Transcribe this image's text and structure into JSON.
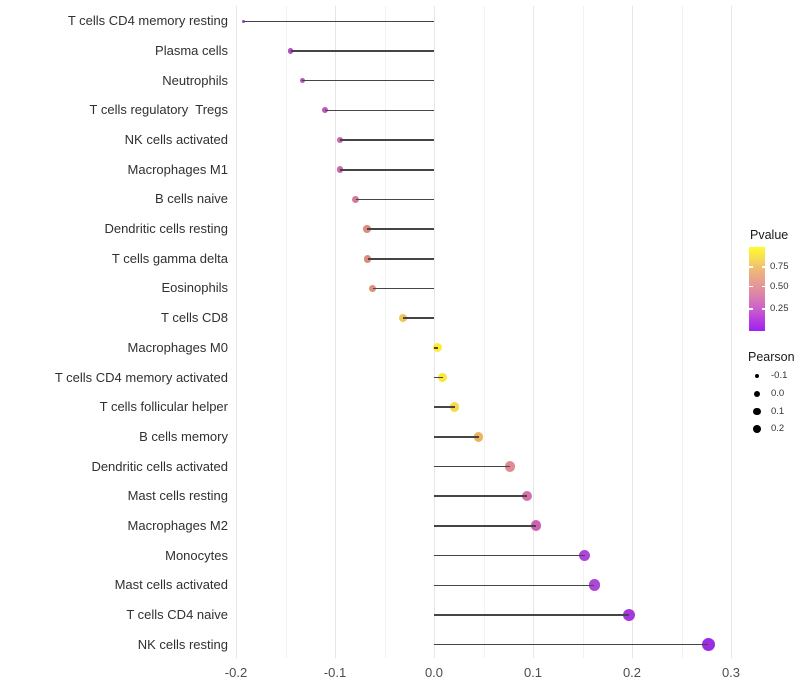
{
  "chart_data": {
    "type": "scatter",
    "subtype": "lollipop",
    "title": "",
    "xlabel": "",
    "ylabel": "",
    "xlim": [
      -0.22,
      0.3
    ],
    "grid": "vertical major and minor gridlines only, light gray on white",
    "color_by": "Pvalue",
    "size_by": "Pearson",
    "categories": [
      "T cells CD4 memory resting",
      "Plasma cells",
      "Neutrophils",
      "T cells regulatory  Tregs",
      "NK cells activated",
      "Macrophages M1",
      "B cells naive",
      "Dendritic cells resting",
      "T cells gamma delta",
      "Eosinophils",
      "T cells CD8",
      "Macrophages M0",
      "T cells CD4 memory activated",
      "T cells follicular helper",
      "B cells memory",
      "Dendritic cells activated",
      "Mast cells resting",
      "Macrophages M2",
      "Monocytes",
      "Mast cells activated",
      "T cells CD4 naive",
      "NK cells resting"
    ],
    "pearson": [
      -0.192,
      -0.145,
      -0.133,
      -0.11,
      -0.095,
      -0.095,
      -0.079,
      -0.068,
      -0.067,
      -0.062,
      -0.031,
      0.004,
      0.009,
      0.021,
      0.045,
      0.077,
      0.094,
      0.103,
      0.152,
      0.162,
      0.197,
      0.277
    ],
    "point_colors": [
      "#9c42c8",
      "#b14cc4",
      "#b951c4",
      "#c455c0",
      "#cd64ae",
      "#cc66b0",
      "#d4799e",
      "#dd8c82",
      "#dd8a7c",
      "#e19078",
      "#f2c654",
      "#fdee33",
      "#fae73c",
      "#f7d94a",
      "#ecb45e",
      "#df8a94",
      "#d471aa",
      "#cd60b2",
      "#ab46d8",
      "#ac48d6",
      "#a538dd",
      "#9a2ce2"
    ],
    "x_axis": {
      "tick_values": [
        -0.2,
        -0.1,
        0.0,
        0.1,
        0.2,
        0.3
      ],
      "tick_labels": [
        "-0.2",
        "-0.1",
        "0.0",
        "0.1",
        "0.2",
        "0.3"
      ],
      "minor_tick_values": [
        -0.15,
        -0.05,
        0.05,
        0.15,
        0.25
      ]
    }
  },
  "legend": {
    "pvalue": {
      "title": "Pvalue",
      "ticks": [
        "0.75",
        "0.50",
        "0.25"
      ],
      "gradient_top_to_bottom": [
        "#fdfc2c",
        "#f7da56",
        "#eeb57b",
        "#e59c92",
        "#dc83ab",
        "#cf63c8",
        "#b93fe0",
        "#9c22f2"
      ]
    },
    "pearson": {
      "title": "Pearson",
      "size_labels": [
        "-0.1",
        "0.0",
        "0.1",
        "0.2"
      ],
      "size_values": [
        -0.1,
        0.0,
        0.1,
        0.2
      ],
      "dot_color": "#000000"
    }
  }
}
